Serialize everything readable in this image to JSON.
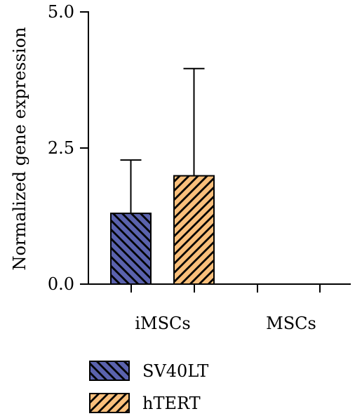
{
  "chart_data": {
    "type": "bar",
    "categories": [
      "iMSCs",
      "MSCs"
    ],
    "series": [
      {
        "name": "SV40LT",
        "values": [
          1.3,
          0.0
        ],
        "errors": [
          0.98,
          0.0
        ],
        "color": "#5a62ad",
        "hatch": "backslash"
      },
      {
        "name": "hTERT",
        "values": [
          1.99,
          0.0
        ],
        "errors": [
          1.97,
          0.0
        ],
        "color": "#f9bf7b",
        "hatch": "slash"
      }
    ],
    "title": "",
    "xlabel": "",
    "ylabel": "Normalized gene expression",
    "ylim": [
      0,
      5.0
    ],
    "yticks": [
      "0.0",
      "2.5",
      "5.0"
    ],
    "grid": false,
    "legend_position": "bottom-left"
  }
}
